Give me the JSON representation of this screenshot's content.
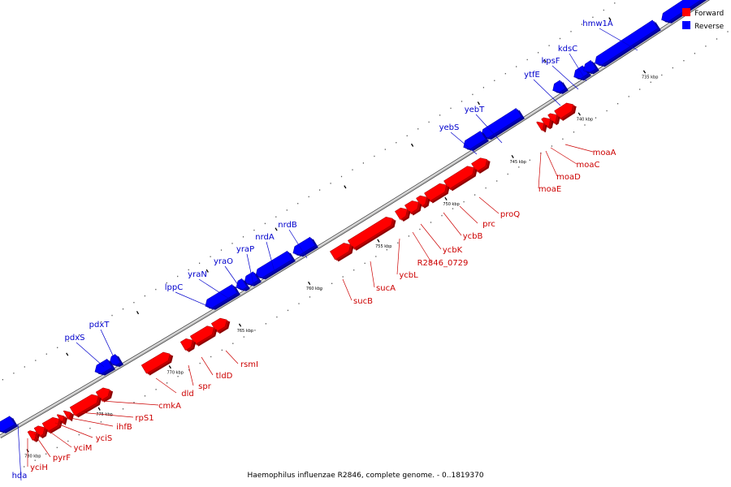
{
  "caption": "Haemophilus influenzae R2846, complete genome. - 0..1819370",
  "legend": [
    {
      "label": "Forward",
      "color": "#ff0000"
    },
    {
      "label": "Reverse",
      "color": "#0000ff"
    }
  ],
  "colors": {
    "forward": "#ff0000",
    "reverse": "#0000ff",
    "label_forward": "#cc0000",
    "label_reverse": "#0000cc",
    "backbone": "#999999"
  },
  "tick_labels": [
    "735 kbp",
    "740 kbp",
    "745 kbp",
    "750 kbp",
    "755 kbp",
    "760 kbp",
    "765 kbp",
    "770 kbp",
    "775 kbp",
    "780 kbp"
  ],
  "reverse_genes": [
    "hmw1A",
    "kdsC",
    "kpsF",
    "ytfE",
    "yebT",
    "yebS",
    "nrdB",
    "nrdA",
    "yraP",
    "yraO",
    "yraN",
    "lppC",
    "pdxT",
    "pdxS",
    "hda"
  ],
  "forward_genes": [
    "moaA",
    "moaC",
    "moaD",
    "moaE",
    "proQ",
    "prc",
    "ycbB",
    "ycbK",
    "R2846_0729",
    "ycbL",
    "sucA",
    "sucB",
    "rsmI",
    "tldD",
    "spr",
    "dld",
    "cmkA",
    "rpS1",
    "ihfB",
    "yciS",
    "yciM",
    "pyrF",
    "yciH"
  ]
}
